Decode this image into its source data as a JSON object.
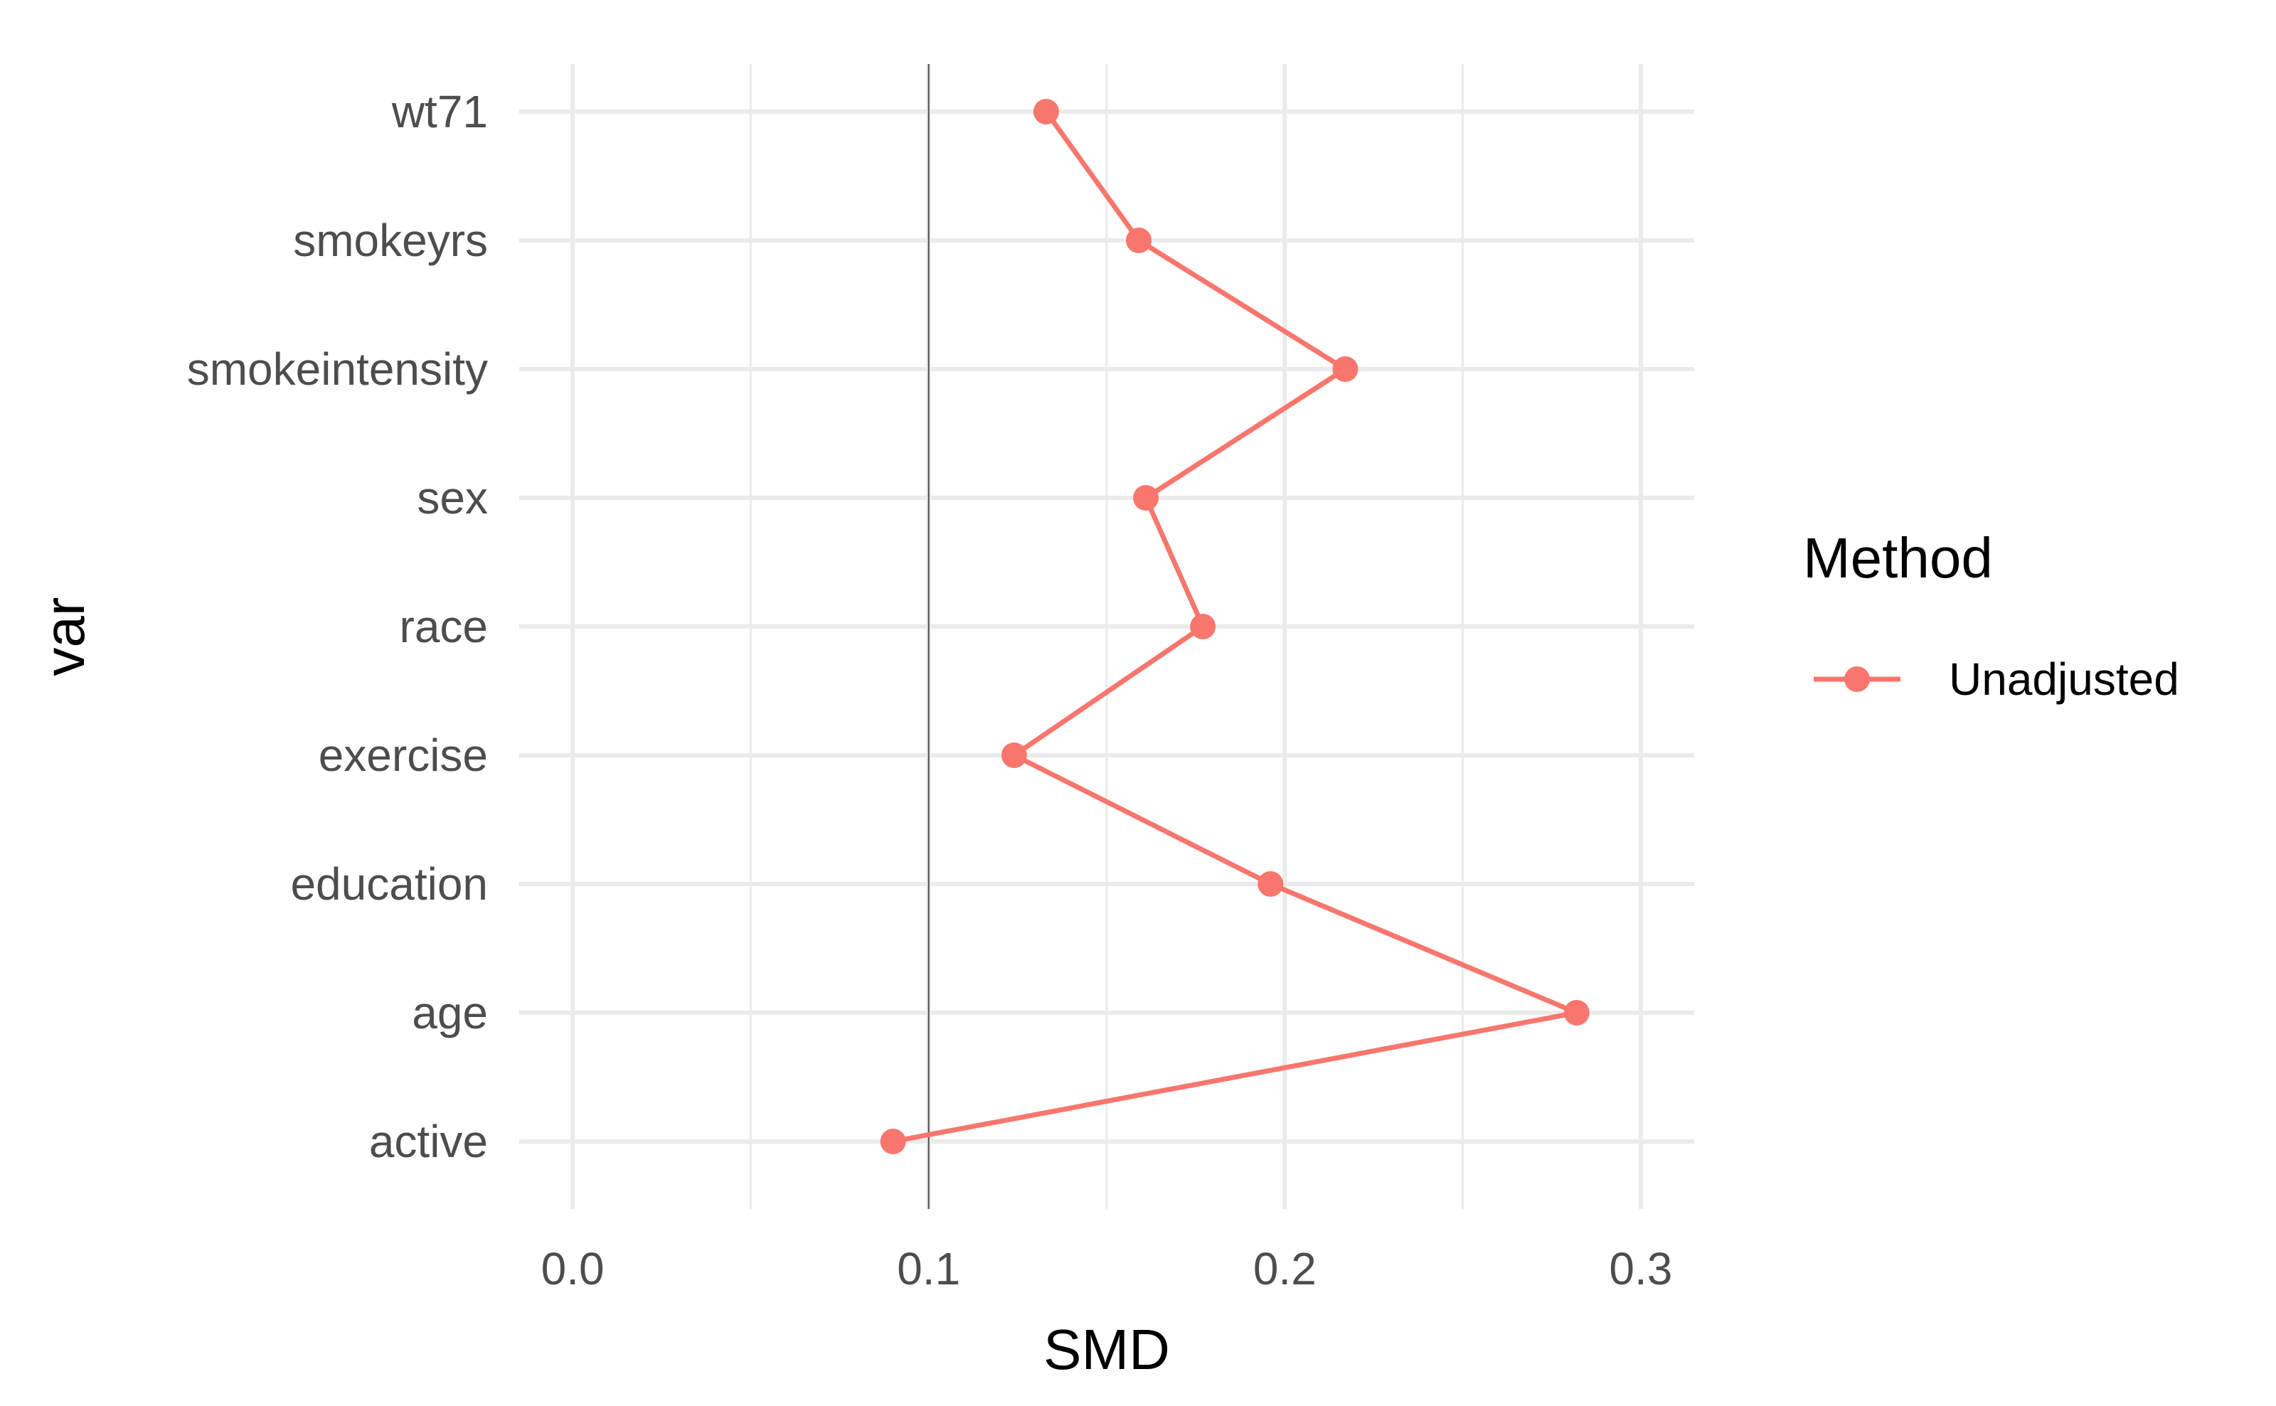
{
  "chart_data": {
    "type": "line",
    "title": "",
    "xlabel": "SMD",
    "ylabel": "var",
    "xlim": [
      -0.015,
      0.315
    ],
    "xticks": [
      0.0,
      0.1,
      0.2,
      0.3
    ],
    "xtick_labels": [
      "0.0",
      "0.1",
      "0.2",
      "0.3"
    ],
    "categories": [
      "active",
      "age",
      "education",
      "exercise",
      "race",
      "sex",
      "smokeintensity",
      "smokeyrs",
      "wt71"
    ],
    "reference_line": {
      "x": 0.1
    },
    "grid": true,
    "legend": {
      "title": "Method",
      "position": "right"
    },
    "series": [
      {
        "name": "Unadjusted",
        "color": "#F8766D",
        "values": [
          0.09,
          0.282,
          0.196,
          0.124,
          0.177,
          0.161,
          0.217,
          0.159,
          0.133
        ]
      }
    ]
  }
}
